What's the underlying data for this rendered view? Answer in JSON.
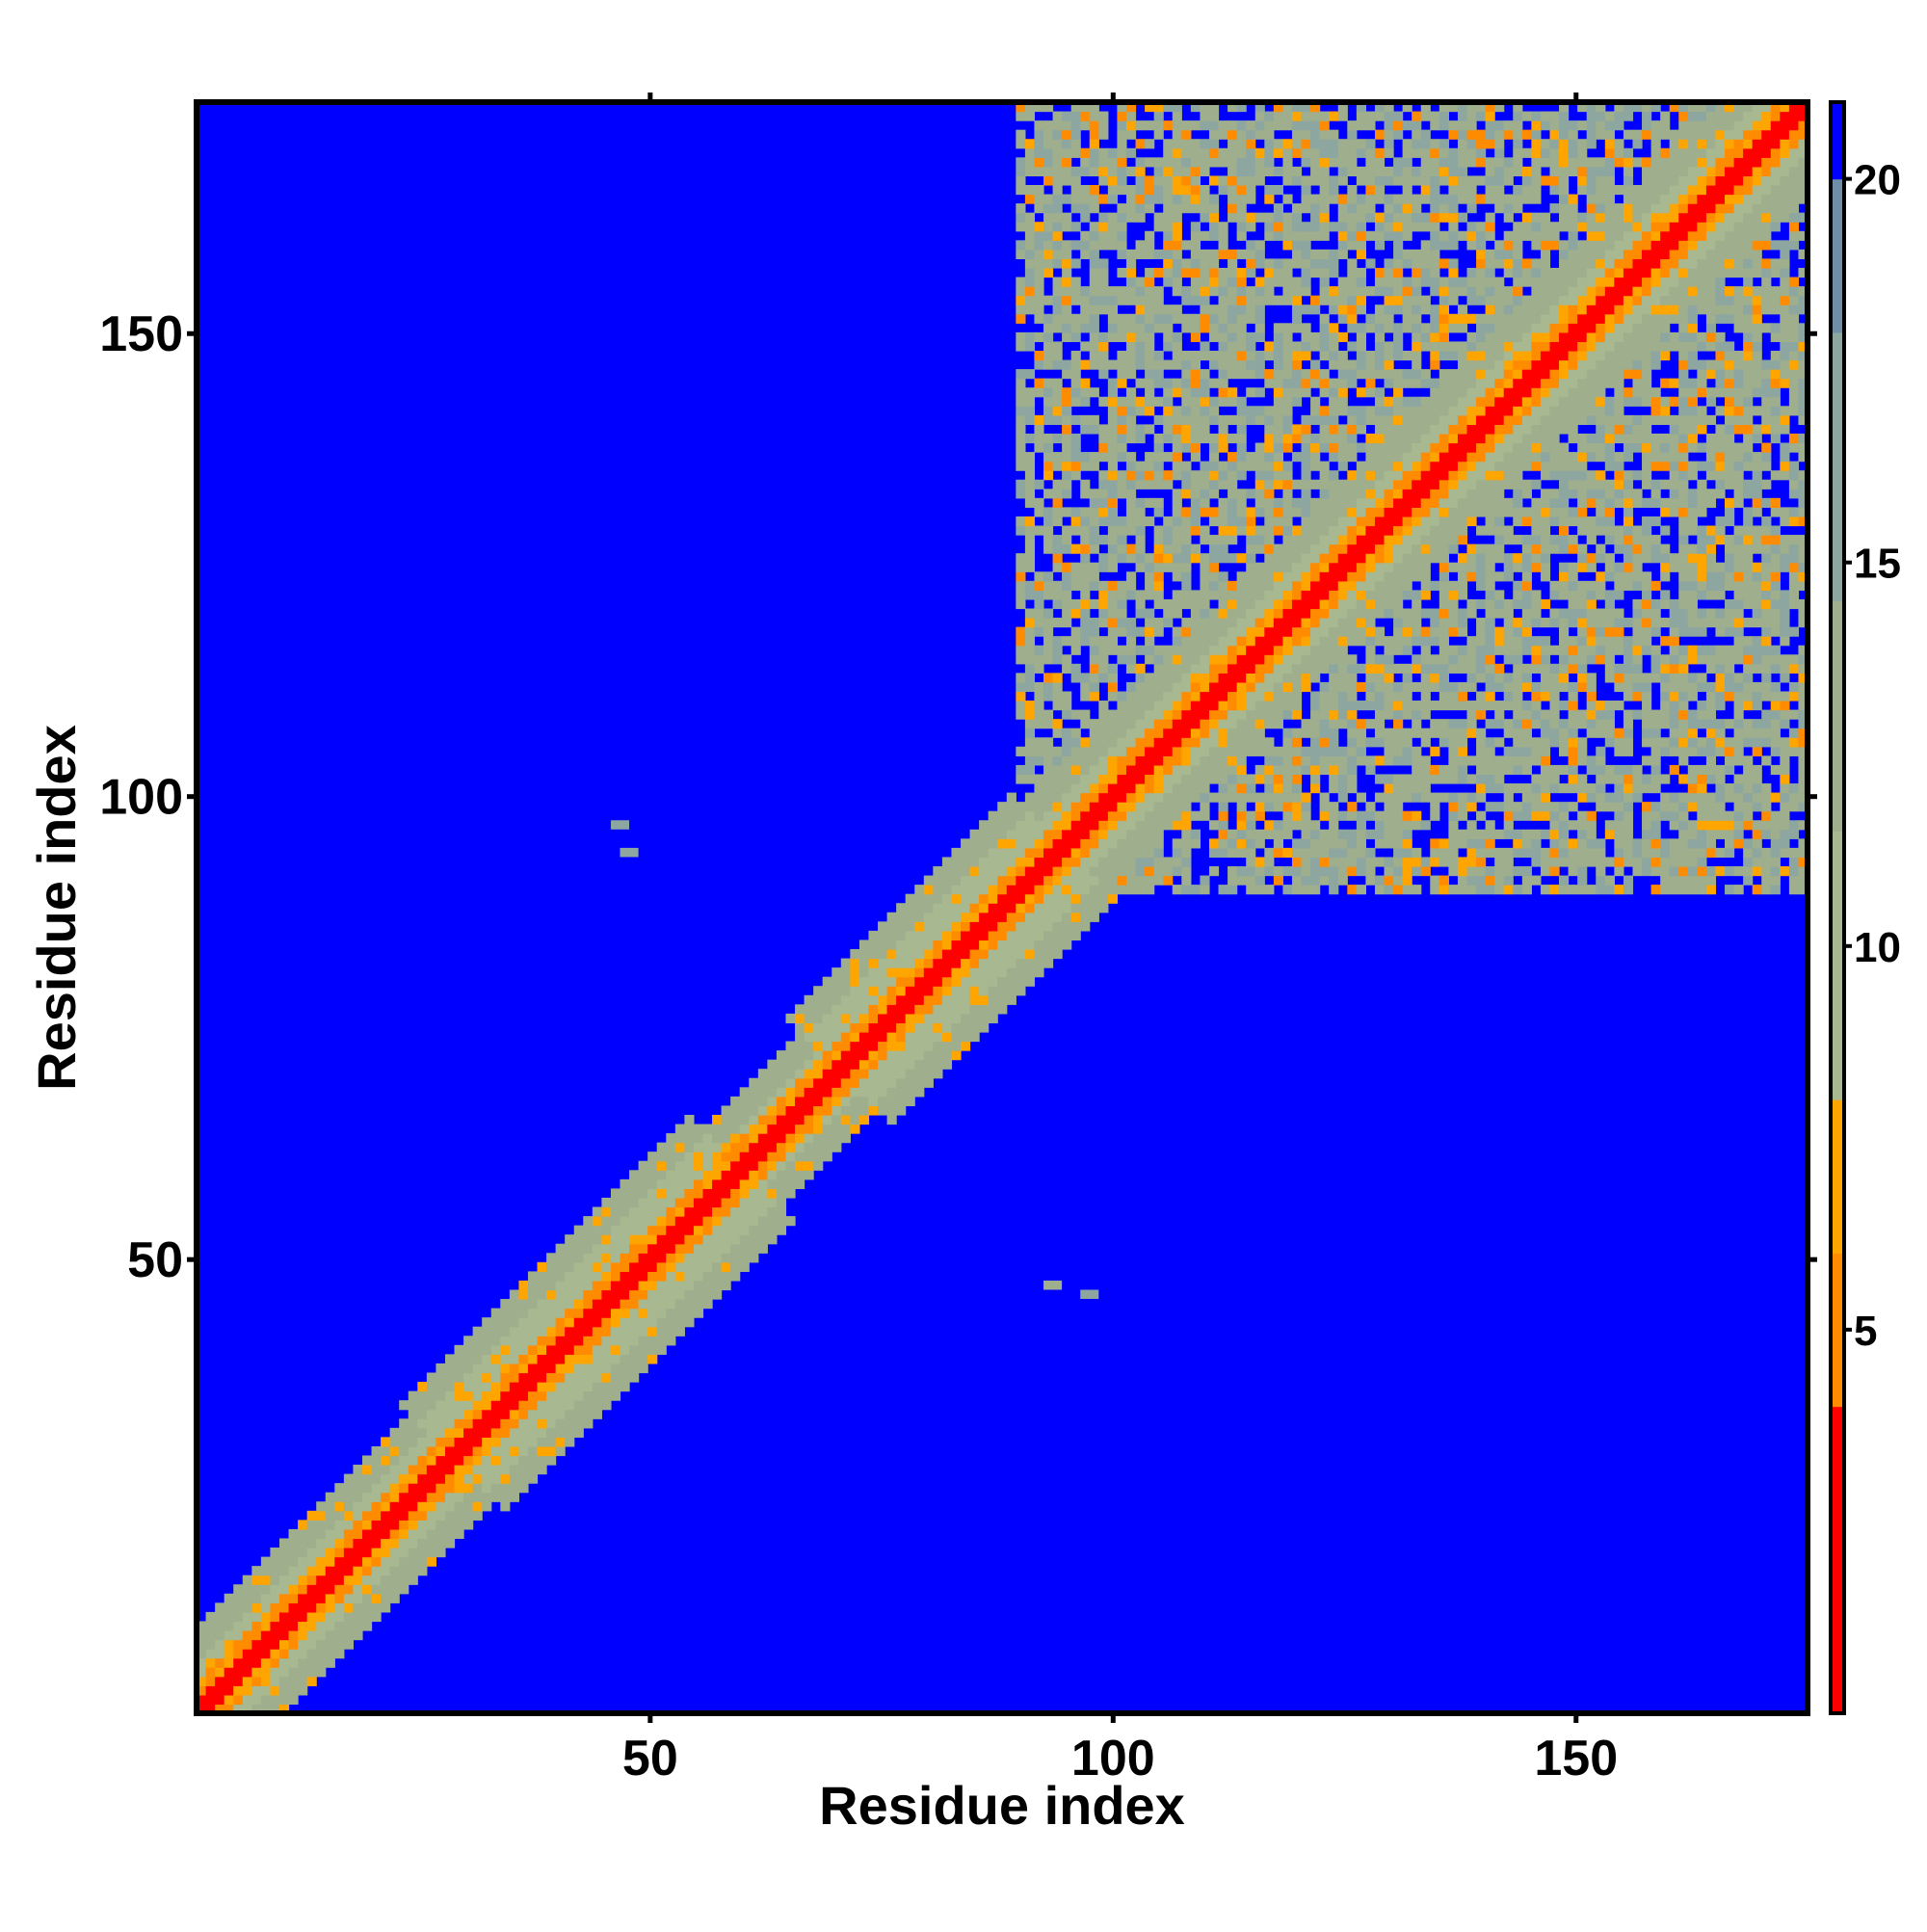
{
  "chart_data": {
    "type": "heatmap",
    "title": "",
    "xlabel": "Residue index",
    "ylabel": "Residue index",
    "n_residues": 175,
    "xlim": [
      1,
      175
    ],
    "ylim": [
      1,
      175
    ],
    "xticks": [
      50,
      100,
      150
    ],
    "yticks": [
      50,
      100,
      150
    ],
    "colorbar": {
      "ticks": [
        5,
        10,
        15,
        20
      ],
      "range": [
        0,
        21
      ],
      "colors": [
        "#ff0000",
        "#ff8c00",
        "#ffa500",
        "#a8b890",
        "#6f8fa8",
        "#0000ff"
      ]
    },
    "matrix_description_values": {
      "diagonal_value": 3,
      "background_value": 21,
      "band_edge_value": 14
    },
    "contact_regions": [
      {
        "x_range": [
          90,
          175
        ],
        "y_range": [
          90,
          175
        ],
        "value": 14
      },
      {
        "x_range": [
          112,
          170
        ],
        "y_range": [
          87,
          133
        ],
        "value": 13
      },
      {
        "x_range": [
          88,
          130
        ],
        "y_range": [
          112,
          170
        ],
        "value": 13
      }
    ],
    "isolated_contacts": [
      {
        "x": 46,
        "y": 97,
        "value": 16
      },
      {
        "x": 47,
        "y": 94,
        "value": 16
      },
      {
        "x": 93,
        "y": 47,
        "value": 14
      },
      {
        "x": 97,
        "y": 46,
        "value": 15
      }
    ]
  }
}
